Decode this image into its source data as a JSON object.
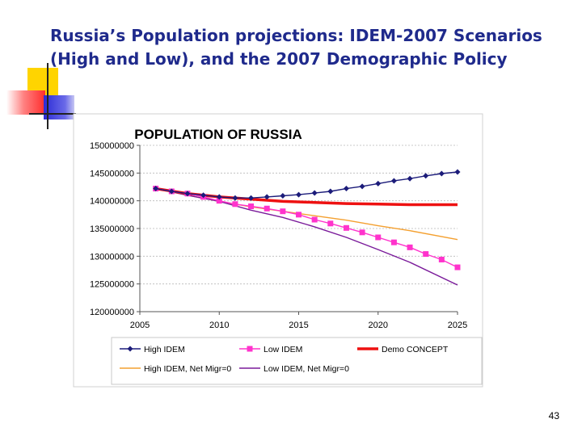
{
  "slide": {
    "title_line1": "Russia’s Population projections: IDEM-2007 Scenarios",
    "title_line2": "(High and Low), and the 2007 Demographic Policy",
    "page_number": "43"
  },
  "chart_data": {
    "type": "line",
    "title": "POPULATION OF RUSSIA",
    "xlabel": "",
    "ylabel": "",
    "xlim": [
      2005,
      2025
    ],
    "ylim": [
      120000000,
      150000000
    ],
    "x_ticks": [
      "2005",
      "2010",
      "2015",
      "2020",
      "2025"
    ],
    "y_ticks": [
      "120000000",
      "125000000",
      "130000000",
      "135000000",
      "140000000",
      "145000000",
      "150000000"
    ],
    "legend_position": "bottom",
    "series": [
      {
        "name": "High IDEM",
        "color": "#1c1c7a",
        "marker": "diamond",
        "x": [
          2006,
          2007,
          2008,
          2009,
          2010,
          2011,
          2012,
          2013,
          2014,
          2015,
          2016,
          2017,
          2018,
          2019,
          2020,
          2021,
          2022,
          2023,
          2024,
          2025
        ],
        "values": [
          142200000,
          141700000,
          141300000,
          141000000,
          140700000,
          140500000,
          140500000,
          140700000,
          140900000,
          141100000,
          141400000,
          141700000,
          142200000,
          142600000,
          143100000,
          143600000,
          144000000,
          144500000,
          144900000,
          145200000
        ]
      },
      {
        "name": "Low  IDEM",
        "color": "#ff33cc",
        "marker": "square",
        "x": [
          2006,
          2007,
          2008,
          2009,
          2010,
          2011,
          2012,
          2013,
          2014,
          2015,
          2016,
          2017,
          2018,
          2019,
          2020,
          2021,
          2022,
          2023,
          2024,
          2025
        ],
        "values": [
          142200000,
          141700000,
          141300000,
          140700000,
          140000000,
          139400000,
          139000000,
          138600000,
          138100000,
          137500000,
          136600000,
          135900000,
          135100000,
          134300000,
          133400000,
          132500000,
          131600000,
          130400000,
          129400000,
          128000000
        ]
      },
      {
        "name": "Demo CONCEPT",
        "color": "#ee1111",
        "marker": "none",
        "x": [
          2006,
          2008,
          2010,
          2012,
          2014,
          2016,
          2018,
          2020,
          2022,
          2025
        ],
        "values": [
          142200000,
          141300000,
          140700000,
          140300000,
          139900000,
          139700000,
          139500000,
          139400000,
          139300000,
          139300000
        ]
      },
      {
        "name": "High IDEM, Net Migr=0",
        "color": "#f4a030",
        "marker": "none",
        "x": [
          2006,
          2008,
          2010,
          2012,
          2014,
          2016,
          2018,
          2020,
          2022,
          2025
        ],
        "values": [
          142200000,
          141000000,
          139900000,
          138900000,
          138100000,
          137300000,
          136500000,
          135500000,
          134600000,
          133000000
        ]
      },
      {
        "name": "Low  IDEM, Net Migr=0",
        "color": "#7a1a9a",
        "marker": "none",
        "x": [
          2006,
          2008,
          2010,
          2012,
          2014,
          2016,
          2018,
          2020,
          2022,
          2025
        ],
        "values": [
          142200000,
          141000000,
          139900000,
          138300000,
          137000000,
          135300000,
          133400000,
          131200000,
          128900000,
          124800000
        ]
      }
    ]
  }
}
